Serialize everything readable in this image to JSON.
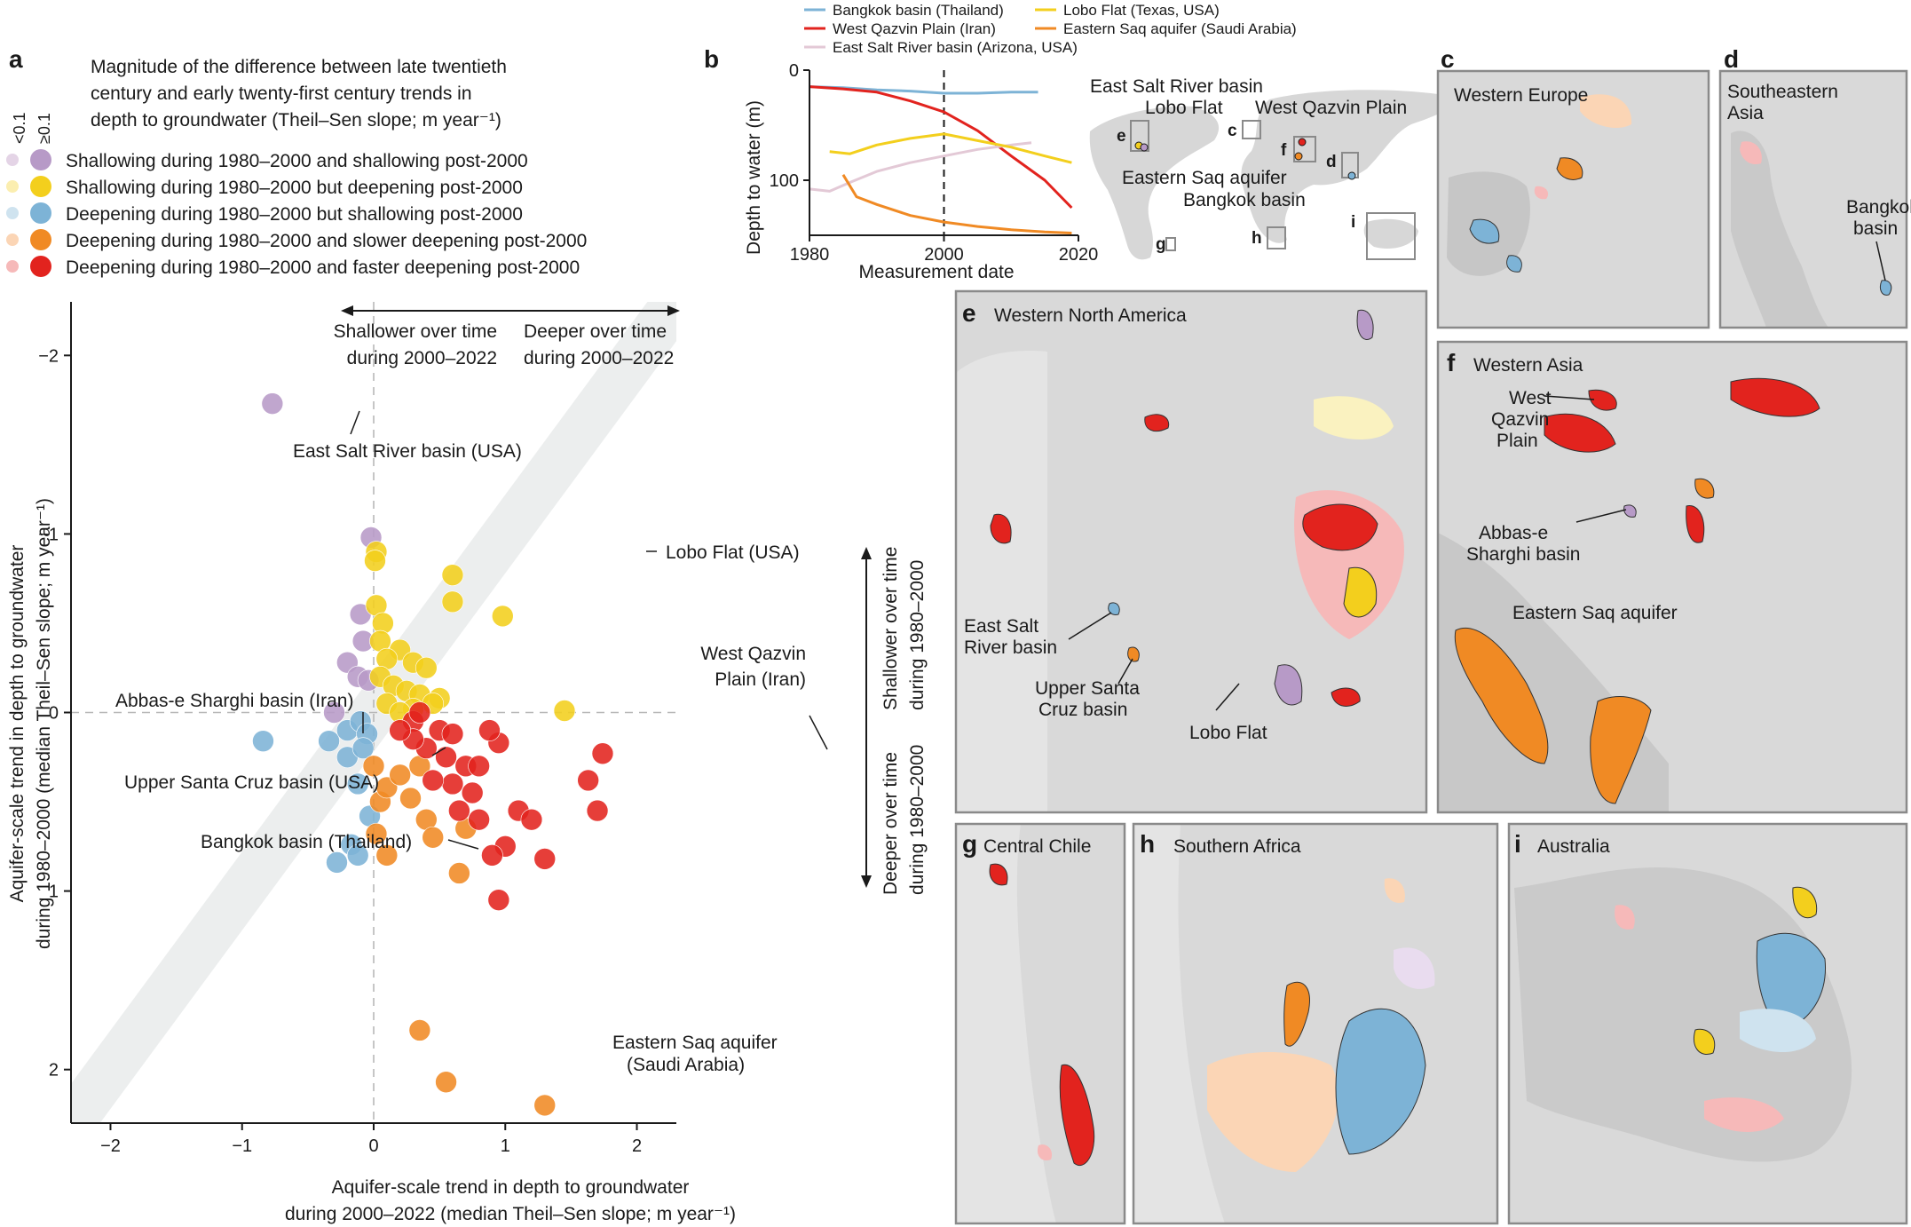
{
  "panels": {
    "a": "a",
    "b": "b",
    "c": "c",
    "d": "d",
    "e": "e",
    "f": "f",
    "g": "g",
    "h": "h",
    "i": "i"
  },
  "legend": {
    "title_lines": [
      "Magnitude of the difference between late twentieth",
      "century and early twenty-first century trends in",
      "depth to groundwater (Theil–Sen slope; m year⁻¹)"
    ],
    "small_header": "<0.1",
    "large_header": "≥0.1",
    "items": [
      {
        "label": "Shallowing during 1980–2000 and shallowing post-2000",
        "light": "#e4d4e6",
        "dark": "#b79ac7"
      },
      {
        "label": "Shallowing during 1980–2000 but deepening post-2000",
        "light": "#fbeeb0",
        "dark": "#f3cf1d"
      },
      {
        "label": "Deepening during 1980–2000 but shallowing post-2000",
        "light": "#cfe3ef",
        "dark": "#7db3d6"
      },
      {
        "label": "Deepening during 1980–2000 and slower deepening post-2000",
        "light": "#fbd5b5",
        "dark": "#f08a24"
      },
      {
        "label": "Deepening during 1980–2000 and faster deepening post-2000",
        "light": "#f6b9b9",
        "dark": "#e2231e"
      }
    ]
  },
  "scatter_text": {
    "arrow_left": [
      "Shallower over time",
      "during 2000–2022"
    ],
    "arrow_right": [
      "Deeper over time",
      "during 2000–2022"
    ],
    "arrow_up": [
      "Shallower over time",
      "during 1980–2000"
    ],
    "arrow_down": [
      "Deeper over time",
      "during 1980–2000"
    ]
  },
  "chart_data": [
    {
      "type": "scatter",
      "xlabel": "Aquifer-scale trend in depth to groundwater during 2000–2022 (median Theil–Sen slope; m year⁻¹)",
      "xlabel_lines": [
        "Aquifer-scale trend in depth to groundwater",
        "during 2000–2022 (median Theil–Sen slope; m year⁻¹)"
      ],
      "ylabel": "Aquifer-scale trend in depth to groundwater during 1980–2000 (median Theil–Sen slope; m year⁻¹)",
      "ylabel_lines": [
        "Aquifer-scale trend in depth to groundwater",
        "during 1980–2000 (median Theil–Sen slope; m year⁻¹)"
      ],
      "xlim": [
        -2.3,
        2.3
      ],
      "ylim": [
        -2.3,
        2.3
      ],
      "y_inverted": true,
      "x_ticks": [
        -2,
        -1,
        0,
        1,
        2
      ],
      "y_ticks": [
        -2,
        -1,
        0,
        1,
        2
      ],
      "x_tick_labels": [
        "−2",
        "−1",
        "0",
        "1",
        "2"
      ],
      "y_tick_labels": [
        "−2",
        "−1",
        "0",
        "1",
        "2"
      ],
      "series": [
        {
          "name": "Shallowing during 1980–2000 and shallowing post-2000",
          "color": "#b79ac7",
          "points": [
            [
              -0.77,
              -1.73
            ],
            [
              -0.02,
              -0.98
            ],
            [
              -0.1,
              -0.55
            ],
            [
              -0.08,
              -0.4
            ],
            [
              -0.2,
              -0.28
            ],
            [
              -0.3,
              0.0
            ],
            [
              -0.12,
              -0.2
            ],
            [
              -0.04,
              -0.18
            ]
          ]
        },
        {
          "name": "Shallowing during 1980–2000 but deepening post-2000",
          "color": "#f3cf1d",
          "points": [
            [
              0.6,
              -0.77
            ],
            [
              0.02,
              -0.9
            ],
            [
              0.01,
              -0.85
            ],
            [
              0.6,
              -0.62
            ],
            [
              0.02,
              -0.6
            ],
            [
              0.98,
              -0.54
            ],
            [
              0.07,
              -0.5
            ],
            [
              0.05,
              -0.4
            ],
            [
              0.2,
              -0.35
            ],
            [
              0.1,
              -0.3
            ],
            [
              0.3,
              -0.28
            ],
            [
              0.4,
              -0.25
            ],
            [
              0.05,
              -0.2
            ],
            [
              0.15,
              -0.15
            ],
            [
              0.25,
              -0.12
            ],
            [
              0.35,
              -0.1
            ],
            [
              0.5,
              -0.08
            ],
            [
              0.45,
              -0.05
            ],
            [
              1.45,
              -0.01
            ],
            [
              0.1,
              -0.05
            ],
            [
              0.3,
              -0.02
            ],
            [
              0.2,
              0.0
            ]
          ]
        },
        {
          "name": "Deepening during 1980–2000 but shallowing post-2000",
          "color": "#7db3d6",
          "points": [
            [
              -0.84,
              0.16
            ],
            [
              -0.34,
              0.16
            ],
            [
              -0.2,
              0.1
            ],
            [
              -0.1,
              0.05
            ],
            [
              -0.05,
              0.12
            ],
            [
              -0.2,
              0.25
            ],
            [
              -0.12,
              0.4
            ],
            [
              -0.03,
              0.58
            ],
            [
              -0.17,
              0.74
            ],
            [
              -0.12,
              0.8
            ],
            [
              -0.28,
              0.84
            ],
            [
              -0.08,
              0.2
            ]
          ]
        },
        {
          "name": "Deepening during 1980–2000 and slower deepening post-2000",
          "color": "#f08a24",
          "points": [
            [
              0.35,
              1.78
            ],
            [
              0.55,
              2.07
            ],
            [
              1.3,
              2.2
            ],
            [
              0.05,
              0.5
            ],
            [
              0.1,
              0.42
            ],
            [
              0.02,
              0.68
            ],
            [
              0.1,
              0.8
            ],
            [
              0.28,
              0.48
            ],
            [
              0.4,
              0.6
            ],
            [
              0.45,
              0.7
            ],
            [
              0.65,
              0.9
            ],
            [
              0.7,
              0.65
            ],
            [
              0.2,
              0.35
            ],
            [
              0.35,
              0.3
            ],
            [
              0.0,
              0.3
            ]
          ]
        },
        {
          "name": "Deepening during 1980–2000 and faster deepening post-2000",
          "color": "#e2231e",
          "points": [
            [
              1.74,
              0.23
            ],
            [
              1.63,
              0.38
            ],
            [
              1.7,
              0.55
            ],
            [
              1.3,
              0.82
            ],
            [
              0.95,
              0.17
            ],
            [
              0.88,
              0.1
            ],
            [
              0.95,
              1.05
            ],
            [
              0.8,
              0.6
            ],
            [
              0.6,
              0.4
            ],
            [
              0.7,
              0.3
            ],
            [
              0.4,
              0.2
            ],
            [
              0.5,
              0.1
            ],
            [
              0.3,
              0.05
            ],
            [
              0.55,
              0.25
            ],
            [
              0.8,
              0.3
            ],
            [
              1.1,
              0.55
            ],
            [
              1.0,
              0.75
            ],
            [
              0.9,
              0.8
            ],
            [
              0.65,
              0.55
            ],
            [
              0.45,
              0.38
            ],
            [
              0.3,
              0.15
            ],
            [
              0.6,
              0.12
            ],
            [
              0.75,
              0.45
            ],
            [
              1.2,
              0.6
            ],
            [
              0.2,
              0.1
            ],
            [
              0.35,
              0.0
            ]
          ]
        }
      ],
      "diagonal_band": {
        "slope": -1,
        "color": "#eceeee"
      },
      "annotations": [
        {
          "text": "East Salt River basin (USA)",
          "x": -0.77,
          "y": -1.73
        },
        {
          "text": "Lobo Flat (USA)",
          "x": 0.6,
          "y": -0.77
        },
        {
          "text": "West Qazvin",
          "x": 1.74,
          "y": 0.23
        },
        {
          "text": "Plain (Iran)",
          "x": 1.74,
          "y": 0.23
        },
        {
          "text": "Abbas-e Sharghi basin (Iran)",
          "x": -0.84,
          "y": 0.16
        },
        {
          "text": "Upper Santa Cruz basin (USA)",
          "x": -0.34,
          "y": 0.16
        },
        {
          "text": "Bangkok basin (Thailand)",
          "x": -0.17,
          "y": 0.74
        },
        {
          "text": "Eastern Saq aquifer",
          "x": 1.3,
          "y": 2.2
        },
        {
          "text": "(Saudi Arabia)",
          "x": 1.3,
          "y": 2.2
        }
      ]
    },
    {
      "type": "line",
      "xlabel": "Measurement date",
      "ylabel": "Depth to water (m)",
      "xlim": [
        1980,
        2020
      ],
      "ylim": [
        0,
        150
      ],
      "y_inverted": true,
      "x_ticks": [
        1980,
        2000,
        2020
      ],
      "y_ticks": [
        0,
        100
      ],
      "vline_x": 2000,
      "series": [
        {
          "name": "Bangkok basin (Thailand)",
          "color": "#7db3d6",
          "x": [
            1980,
            1985,
            1990,
            1995,
            2000,
            2005,
            2010,
            2014
          ],
          "y": [
            15,
            16,
            18,
            19,
            21,
            21,
            20,
            20
          ]
        },
        {
          "name": "West Qazvin Plain (Iran)",
          "color": "#e2231e",
          "x": [
            1980,
            1985,
            1990,
            1995,
            2000,
            2005,
            2010,
            2015,
            2019
          ],
          "y": [
            15,
            17,
            20,
            28,
            38,
            55,
            78,
            100,
            125
          ]
        },
        {
          "name": "East Salt River basin (Arizona, USA)",
          "color": "#e3c9d6",
          "x": [
            1980,
            1983,
            1986,
            1990,
            1995,
            2000,
            2005,
            2010,
            2013
          ],
          "y": [
            108,
            110,
            102,
            92,
            84,
            78,
            72,
            68,
            66
          ]
        },
        {
          "name": "Lobo Flat (Texas, USA)",
          "color": "#f3cf1d",
          "x": [
            1983,
            1986,
            1990,
            1995,
            2000,
            2005,
            2010,
            2015,
            2019
          ],
          "y": [
            74,
            76,
            68,
            62,
            58,
            64,
            70,
            78,
            84
          ]
        },
        {
          "name": "Eastern Saq aquifer (Saudi Arabia)",
          "color": "#f08a24",
          "x": [
            1985,
            1987,
            1990,
            1995,
            2000,
            2005,
            2010,
            2015,
            2019
          ],
          "y": [
            95,
            115,
            122,
            132,
            138,
            142,
            145,
            147,
            148
          ]
        }
      ]
    }
  ],
  "map_b": {
    "labels": [
      "East Salt River basin",
      "Lobo Flat",
      "West Qazvin Plain",
      "Eastern Saq aquifer",
      "Bangkok basin"
    ],
    "inset_letters": [
      "c",
      "d",
      "e",
      "f",
      "g",
      "h",
      "i"
    ]
  },
  "maps": {
    "c": {
      "title": "Western Europe"
    },
    "d": {
      "title_lines": [
        "Southeastern",
        "Asia"
      ],
      "label_lines": [
        "Bangkok",
        "basin"
      ]
    },
    "e": {
      "title": "Western North America",
      "labels": [
        [
          "East Salt",
          "River basin"
        ],
        [
          "Upper Santa",
          "Cruz basin"
        ],
        [
          "Lobo Flat"
        ]
      ]
    },
    "f": {
      "title": "Western Asia",
      "labels": [
        [
          "West",
          "Qazvin",
          "Plain"
        ],
        [
          "Abbas-e",
          "Sharghi basin"
        ],
        [
          "Eastern Saq aquifer"
        ]
      ]
    },
    "g": {
      "title": "Central Chile"
    },
    "h": {
      "title": "Southern Africa"
    },
    "i": {
      "title": "Australia"
    }
  }
}
